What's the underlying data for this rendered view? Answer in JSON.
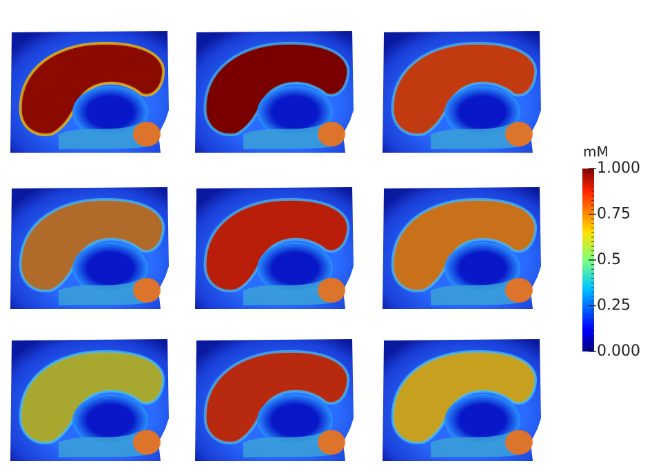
{
  "colorbar": {
    "label": "mM",
    "lim": [
      0,
      1
    ],
    "ticks": [
      {
        "value": 0,
        "label": "0.000"
      },
      0.25,
      0.5,
      0.75,
      {
        "value": 1,
        "label": "1.000"
      }
    ]
  }
}
